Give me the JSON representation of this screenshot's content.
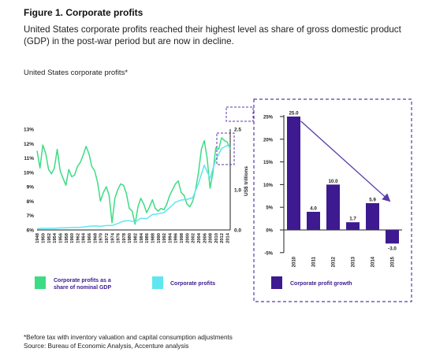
{
  "figure": {
    "title": "Figure 1. Corporate profits",
    "subtitle": "United States corporate profits reached their highest level as share of gross domestic product (GDP) in the post-war period but are now in decline.",
    "chart_label": "United States corporate profits*"
  },
  "footnotes": {
    "note": "*Before tax with inventory valuation and capital consumption adjustments",
    "source": "Source: Bureau of Economic Analysis, Accenture analysis"
  },
  "colors": {
    "share_line": "#3ddc84",
    "profits_line": "#5fe6f0",
    "bars": "#3d1a8f",
    "dashed_box": "#5a3aa8",
    "trend_arrow": "#5a3aa8"
  },
  "chart_data": [
    {
      "type": "line",
      "x_tick_labels": [
        "1948",
        "1950",
        "1952",
        "1954",
        "1956",
        "1958",
        "1960",
        "1962",
        "1964",
        "1966",
        "1968",
        "1970",
        "1972",
        "1974",
        "1976",
        "1978",
        "1980",
        "1982",
        "1984",
        "1986",
        "1988",
        "1990",
        "1992",
        "1994",
        "1996",
        "1998",
        "2000",
        "2002",
        "2004",
        "2006",
        "2008",
        "2010",
        "2012",
        "2014"
      ],
      "y_left_ticks": [
        "6%",
        "7%",
        "8%",
        "9%",
        "10%",
        "11%",
        "12%",
        "13%"
      ],
      "y_left_range": [
        6,
        13
      ],
      "y_right_ticks": [
        "0.0",
        "1.0",
        "2.5"
      ],
      "y_right_range": [
        0,
        2.5
      ],
      "y_right_label": "US$ trillions",
      "x_range": [
        1948,
        2015
      ],
      "series": [
        {
          "name": "Corporate profits as a share of nominal GDP",
          "axis": "left",
          "x": [
            1948,
            1949,
            1950,
            1951,
            1952,
            1953,
            1954,
            1955,
            1956,
            1957,
            1958,
            1959,
            1960,
            1961,
            1962,
            1963,
            1964,
            1965,
            1966,
            1967,
            1968,
            1969,
            1970,
            1971,
            1972,
            1973,
            1974,
            1975,
            1976,
            1977,
            1978,
            1979,
            1980,
            1981,
            1982,
            1983,
            1984,
            1985,
            1986,
            1987,
            1988,
            1989,
            1990,
            1991,
            1992,
            1993,
            1994,
            1995,
            1996,
            1997,
            1998,
            1999,
            2000,
            2001,
            2002,
            2003,
            2004,
            2005,
            2006,
            2007,
            2008,
            2009,
            2010,
            2011,
            2012,
            2013,
            2014,
            2015
          ],
          "values": [
            11.5,
            10.3,
            11.9,
            11.3,
            10.2,
            9.9,
            10.3,
            11.6,
            10.1,
            9.6,
            9.1,
            10.2,
            9.7,
            9.8,
            10.4,
            10.7,
            11.2,
            11.8,
            11.3,
            10.4,
            10.1,
            9.3,
            8.0,
            8.6,
            9.0,
            8.4,
            6.5,
            8.2,
            8.8,
            9.2,
            9.1,
            8.5,
            7.5,
            7.3,
            6.4,
            7.6,
            8.2,
            7.8,
            7.2,
            7.6,
            8.1,
            7.5,
            7.3,
            7.5,
            7.4,
            7.8,
            8.4,
            8.8,
            9.2,
            9.4,
            8.6,
            8.4,
            7.8,
            7.6,
            8.0,
            8.8,
            10.0,
            11.6,
            12.2,
            11.0,
            8.9,
            10.0,
            11.7,
            11.6,
            12.4,
            12.2,
            12.1,
            11.6
          ]
        },
        {
          "name": "Corporate profits",
          "axis": "right",
          "x": [
            1948,
            1950,
            1952,
            1954,
            1956,
            1958,
            1960,
            1962,
            1964,
            1966,
            1968,
            1970,
            1972,
            1974,
            1976,
            1978,
            1980,
            1982,
            1984,
            1986,
            1988,
            1990,
            1992,
            1994,
            1996,
            1998,
            2000,
            2002,
            2004,
            2006,
            2008,
            2010,
            2012,
            2014,
            2015
          ],
          "values": [
            0.03,
            0.04,
            0.04,
            0.04,
            0.05,
            0.05,
            0.06,
            0.06,
            0.07,
            0.09,
            0.1,
            0.09,
            0.11,
            0.11,
            0.16,
            0.22,
            0.23,
            0.2,
            0.29,
            0.28,
            0.38,
            0.4,
            0.43,
            0.55,
            0.69,
            0.74,
            0.76,
            0.8,
            1.16,
            1.61,
            1.28,
            1.74,
            2.02,
            2.1,
            2.05
          ]
        }
      ]
    },
    {
      "type": "bar",
      "title": "Corporate profit growth",
      "categories": [
        "2010",
        "2011",
        "2012",
        "2013",
        "2014",
        "2015"
      ],
      "values": [
        25.0,
        4.0,
        10.0,
        1.7,
        5.9,
        -3.0
      ],
      "value_labels": [
        "25.0",
        "4.0",
        "10.0",
        "1.7",
        "5.9",
        "-3.0"
      ],
      "y_ticks": [
        "-5%",
        "0%",
        "5%",
        "10%",
        "15%",
        "20%",
        "25%"
      ],
      "y_range": [
        -5,
        25
      ]
    }
  ]
}
